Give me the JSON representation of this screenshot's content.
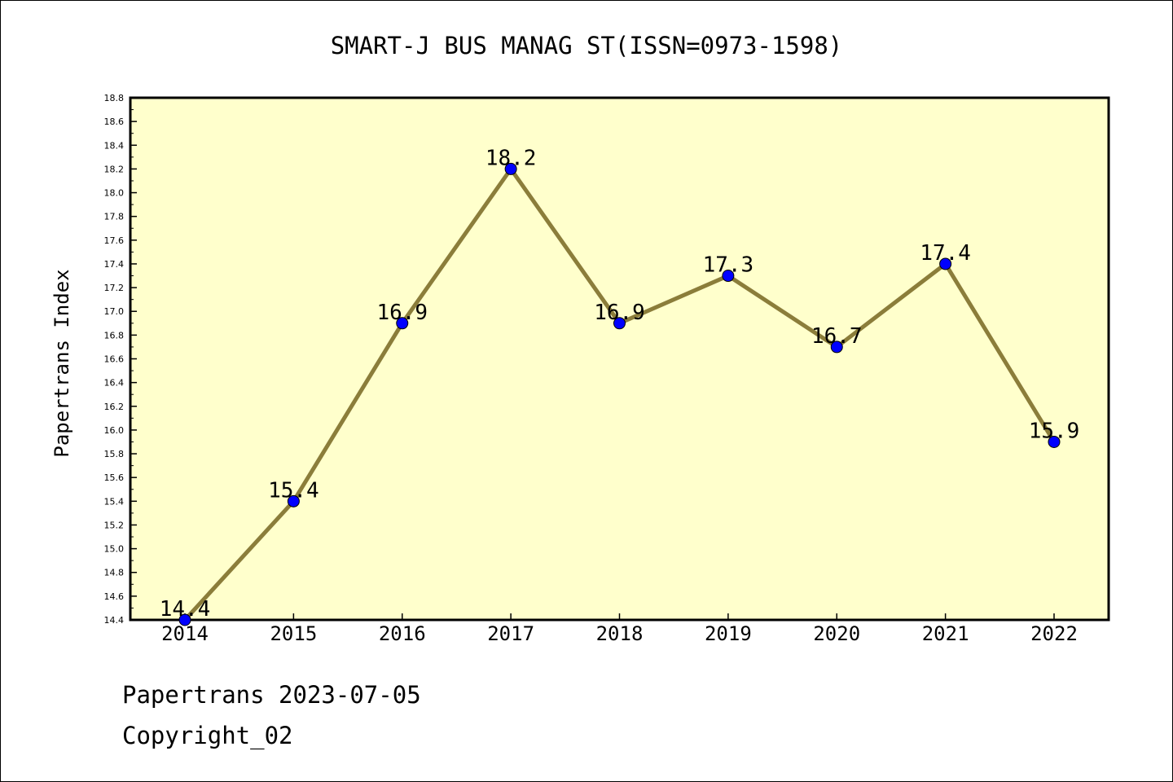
{
  "chart_data": {
    "type": "line",
    "title": "SMART-J BUS MANAG ST(ISSN=0973-1598)",
    "xlabel": "",
    "ylabel": "Papertrans Index",
    "categories": [
      "2014",
      "2015",
      "2016",
      "2017",
      "2018",
      "2019",
      "2020",
      "2021",
      "2022"
    ],
    "values": [
      14.4,
      15.4,
      16.9,
      18.2,
      16.9,
      17.3,
      16.7,
      17.4,
      15.9
    ],
    "data_labels": [
      "14.4",
      "15.4",
      "16.9",
      "18.2",
      "16.9",
      "17.3",
      "16.7",
      "17.4",
      "15.9"
    ],
    "ylim": [
      14.4,
      18.8
    ],
    "ytick_step": 0.2,
    "grid": false,
    "legend": "none",
    "colors": {
      "plot_background": "#ffffcc",
      "line": "#8b7d3a",
      "marker": "#0000ff"
    }
  },
  "footer": {
    "date_line": "Papertrans 2023-07-05",
    "copyright": "Copyright_02"
  }
}
